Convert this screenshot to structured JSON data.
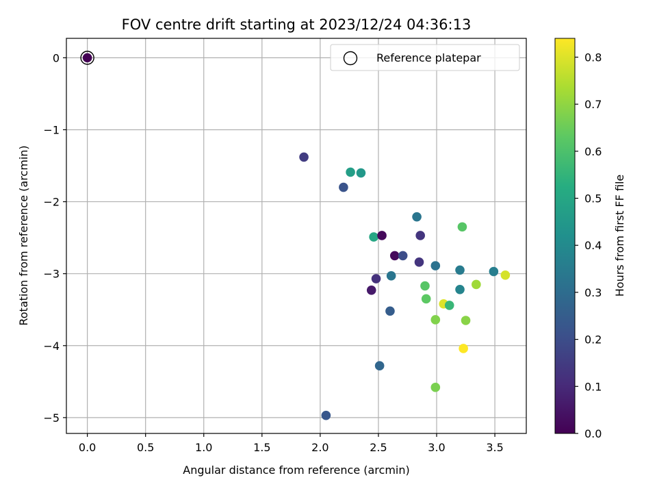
{
  "chart_data": {
    "type": "scatter",
    "title": "FOV centre drift starting at 2023/12/24 04:36:13",
    "xlabel": "Angular distance from reference (arcmin)",
    "ylabel": "Rotation from reference (arcmin)",
    "xlim": [
      -0.18,
      3.77
    ],
    "ylim": [
      -5.22,
      0.27
    ],
    "x_ticks": [
      0.0,
      0.5,
      1.0,
      1.5,
      2.0,
      2.5,
      3.0,
      3.5
    ],
    "x_tick_labels": [
      "0.0",
      "0.5",
      "1.0",
      "1.5",
      "2.0",
      "2.5",
      "3.0",
      "3.5"
    ],
    "y_ticks": [
      0,
      -1,
      -2,
      -3,
      -4,
      -5
    ],
    "y_tick_labels": [
      "0",
      "−1",
      "−2",
      "−3",
      "−4",
      "−5"
    ],
    "grid": true,
    "legend": {
      "placement": "upper right",
      "entries": [
        "Reference platepar"
      ]
    },
    "reference_point": {
      "x": 0.0,
      "y": 0.0,
      "c": 0.0
    },
    "colorbar": {
      "label": "Hours from first FF file",
      "colormap": "viridis",
      "range": [
        0.0,
        0.84
      ],
      "ticks": [
        0.0,
        0.1,
        0.2,
        0.3,
        0.4,
        0.5,
        0.6,
        0.7,
        0.8
      ],
      "tick_labels": [
        "0.0",
        "0.1",
        "0.2",
        "0.3",
        "0.4",
        "0.5",
        "0.6",
        "0.7",
        "0.8"
      ]
    },
    "points": [
      {
        "x": 0.0,
        "y": 0.0,
        "c": 0.0
      },
      {
        "x": 1.86,
        "y": -1.38,
        "c": 0.15
      },
      {
        "x": 2.26,
        "y": -1.59,
        "c": 0.47
      },
      {
        "x": 2.35,
        "y": -1.6,
        "c": 0.45
      },
      {
        "x": 2.2,
        "y": -1.8,
        "c": 0.22
      },
      {
        "x": 2.83,
        "y": -2.21,
        "c": 0.33
      },
      {
        "x": 3.22,
        "y": -2.35,
        "c": 0.62
      },
      {
        "x": 2.46,
        "y": -2.49,
        "c": 0.5
      },
      {
        "x": 2.53,
        "y": -2.47,
        "c": 0.02
      },
      {
        "x": 2.86,
        "y": -2.47,
        "c": 0.13
      },
      {
        "x": 2.64,
        "y": -2.75,
        "c": 0.02
      },
      {
        "x": 2.71,
        "y": -2.75,
        "c": 0.2
      },
      {
        "x": 2.85,
        "y": -2.84,
        "c": 0.13
      },
      {
        "x": 2.99,
        "y": -2.89,
        "c": 0.32
      },
      {
        "x": 3.2,
        "y": -2.95,
        "c": 0.35
      },
      {
        "x": 3.49,
        "y": -2.97,
        "c": 0.36
      },
      {
        "x": 3.59,
        "y": -3.02,
        "c": 0.79
      },
      {
        "x": 2.61,
        "y": -3.03,
        "c": 0.33
      },
      {
        "x": 2.48,
        "y": -3.07,
        "c": 0.12
      },
      {
        "x": 3.34,
        "y": -3.15,
        "c": 0.72
      },
      {
        "x": 2.9,
        "y": -3.17,
        "c": 0.62
      },
      {
        "x": 3.2,
        "y": -3.22,
        "c": 0.38
      },
      {
        "x": 2.44,
        "y": -3.23,
        "c": 0.06
      },
      {
        "x": 2.91,
        "y": -3.35,
        "c": 0.63
      },
      {
        "x": 3.06,
        "y": -3.42,
        "c": 0.8
      },
      {
        "x": 3.11,
        "y": -3.44,
        "c": 0.56
      },
      {
        "x": 2.6,
        "y": -3.52,
        "c": 0.25
      },
      {
        "x": 2.99,
        "y": -3.64,
        "c": 0.68
      },
      {
        "x": 3.25,
        "y": -3.65,
        "c": 0.69
      },
      {
        "x": 3.23,
        "y": -4.04,
        "c": 0.84
      },
      {
        "x": 2.51,
        "y": -4.28,
        "c": 0.28
      },
      {
        "x": 2.99,
        "y": -4.58,
        "c": 0.67
      },
      {
        "x": 2.05,
        "y": -4.97,
        "c": 0.23
      }
    ]
  }
}
